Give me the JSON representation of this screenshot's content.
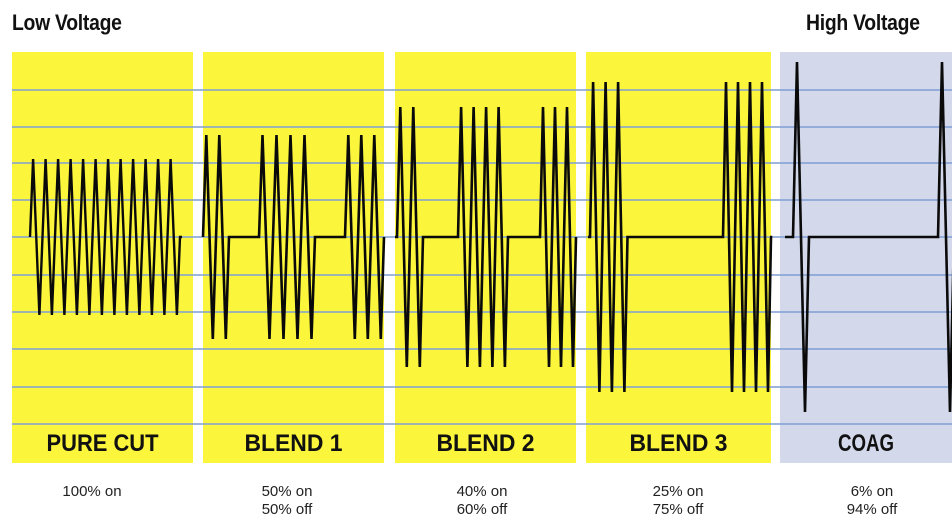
{
  "scale": {
    "low_label": "Low Voltage",
    "high_label": "High Voltage"
  },
  "colors": {
    "panel_yellow": "#fbf53b",
    "panel_coag": "#d3d9ea",
    "grid_line": "#7f9ed4",
    "waveform": "#0a0a0a"
  },
  "modes": [
    {
      "name": "PURE CUT",
      "duty_on": "100% on",
      "duty_off": "",
      "on_percent": 100,
      "off_percent": 0
    },
    {
      "name": "BLEND 1",
      "duty_on": "50% on",
      "duty_off": "50% off",
      "on_percent": 50,
      "off_percent": 50
    },
    {
      "name": "BLEND 2",
      "duty_on": "40% on",
      "duty_off": "60% off",
      "on_percent": 40,
      "off_percent": 60
    },
    {
      "name": "BLEND 3",
      "duty_on": "25% on",
      "duty_off": "75% off",
      "on_percent": 25,
      "off_percent": 75
    },
    {
      "name": "COAG",
      "duty_on": "6% on",
      "duty_off": "94% off",
      "on_percent": 6,
      "off_percent": 94
    }
  ]
}
